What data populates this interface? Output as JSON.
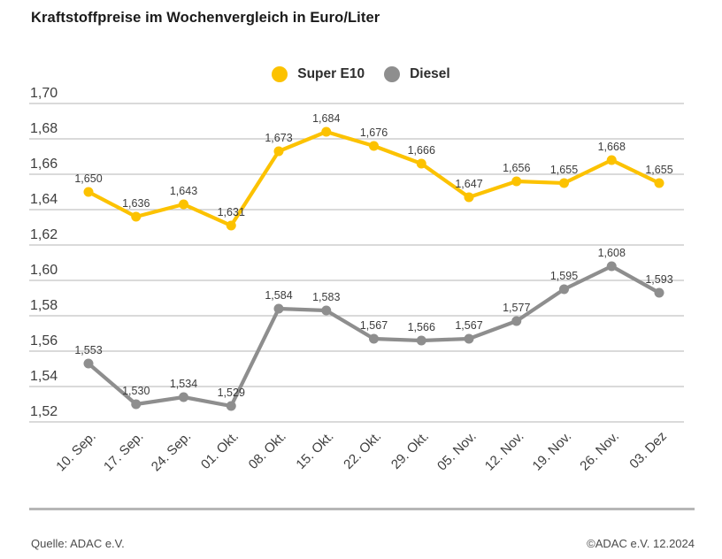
{
  "title": "Kraftstoffpreise im Wochenvergleich in Euro/Liter",
  "footer": {
    "source": "Quelle: ADAC e.V.",
    "copyright": "©ADAC e.V. 12.2024"
  },
  "colors": {
    "super_e10": "#FCC200",
    "diesel": "#8E8E8E",
    "grid": "#c3c3c3",
    "divider": "#b6b6b6",
    "axis_text": "#3d3d3d",
    "value_text": "#3c3c3c",
    "title_text": "#1a1a1a"
  },
  "chart_data": {
    "type": "line",
    "title": "Kraftstoffpreise im Wochenvergleich in Euro/Liter",
    "xlabel": "",
    "ylabel": "Euro/Liter",
    "grid": true,
    "legend_position": "top-center",
    "categories": [
      "10. Sep.",
      "17. Sep.",
      "24. Sep.",
      "01. Okt.",
      "08. Okt.",
      "15. Okt.",
      "22. Okt.",
      "29. Okt.",
      "05. Nov.",
      "12. Nov.",
      "19. Nov.",
      "26. Nov.",
      "03. Dez"
    ],
    "y_axis": {
      "min": 1.52,
      "max": 1.7,
      "step": 0.02,
      "tick_labels": [
        "1,70",
        "1,68",
        "1,66",
        "1,64",
        "1,62",
        "1,60",
        "1,58",
        "1,56",
        "1,54",
        "1,52"
      ]
    },
    "series": [
      {
        "name": "Super E10",
        "color_key": "super_e10",
        "values": [
          1.65,
          1.636,
          1.643,
          1.631,
          1.673,
          1.684,
          1.676,
          1.666,
          1.647,
          1.656,
          1.655,
          1.668,
          1.655
        ]
      },
      {
        "name": "Diesel",
        "color_key": "diesel",
        "values": [
          1.553,
          1.53,
          1.534,
          1.529,
          1.584,
          1.583,
          1.567,
          1.566,
          1.567,
          1.577,
          1.595,
          1.608,
          1.593
        ]
      }
    ]
  }
}
